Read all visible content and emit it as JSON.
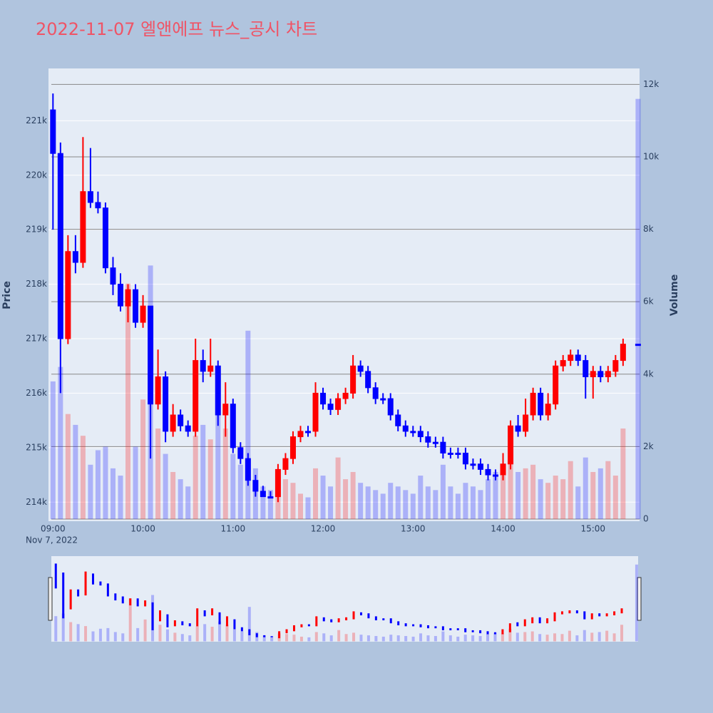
{
  "chart_data": {
    "type": "candlestick",
    "title": "2022-11-07 엘앤에프 뉴스_공시 차트",
    "ylabel": "Price",
    "y2label": "Volume",
    "x_date_label": "Nov 7, 2022",
    "increasing_color": "#ff0000",
    "decreasing_color": "#0000ff",
    "x": [
      "2022-11-07 09:00",
      "2022-11-07 09:05",
      "2022-11-07 09:10",
      "2022-11-07 09:15",
      "2022-11-07 09:20",
      "2022-11-07 09:25",
      "2022-11-07 09:30",
      "2022-11-07 09:35",
      "2022-11-07 09:40",
      "2022-11-07 09:45",
      "2022-11-07 09:50",
      "2022-11-07 09:55",
      "2022-11-07 10:00",
      "2022-11-07 10:05",
      "2022-11-07 10:10",
      "2022-11-07 10:15",
      "2022-11-07 10:20",
      "2022-11-07 10:25",
      "2022-11-07 10:30",
      "2022-11-07 10:35",
      "2022-11-07 10:40",
      "2022-11-07 10:45",
      "2022-11-07 10:50",
      "2022-11-07 10:55",
      "2022-11-07 11:00",
      "2022-11-07 11:05",
      "2022-11-07 11:10",
      "2022-11-07 11:15",
      "2022-11-07 11:20",
      "2022-11-07 11:25",
      "2022-11-07 11:30",
      "2022-11-07 11:35",
      "2022-11-07 11:40",
      "2022-11-07 11:45",
      "2022-11-07 11:50",
      "2022-11-07 11:55",
      "2022-11-07 12:00",
      "2022-11-07 12:05",
      "2022-11-07 12:10",
      "2022-11-07 12:15",
      "2022-11-07 12:20",
      "2022-11-07 12:25",
      "2022-11-07 12:30",
      "2022-11-07 12:35",
      "2022-11-07 12:40",
      "2022-11-07 12:45",
      "2022-11-07 12:50",
      "2022-11-07 12:55",
      "2022-11-07 13:00",
      "2022-11-07 13:05",
      "2022-11-07 13:10",
      "2022-11-07 13:15",
      "2022-11-07 13:20",
      "2022-11-07 13:25",
      "2022-11-07 13:30",
      "2022-11-07 13:35",
      "2022-11-07 13:40",
      "2022-11-07 13:45",
      "2022-11-07 13:50",
      "2022-11-07 13:55",
      "2022-11-07 14:00",
      "2022-11-07 14:05",
      "2022-11-07 14:10",
      "2022-11-07 14:15",
      "2022-11-07 14:20",
      "2022-11-07 14:25",
      "2022-11-07 14:30",
      "2022-11-07 14:35",
      "2022-11-07 14:40",
      "2022-11-07 14:45",
      "2022-11-07 14:50",
      "2022-11-07 14:55",
      "2022-11-07 15:00",
      "2022-11-07 15:05",
      "2022-11-07 15:10",
      "2022-11-07 15:15",
      "2022-11-07 15:20",
      "2022-11-07 15:30"
    ],
    "open": [
      221200,
      220400,
      217000,
      218600,
      218400,
      219700,
      219500,
      219400,
      218300,
      218000,
      217600,
      217900,
      217300,
      217600,
      215800,
      216300,
      215300,
      215600,
      215400,
      215300,
      216600,
      216400,
      216500,
      215600,
      215800,
      215000,
      214800,
      214400,
      214200,
      214100,
      214100,
      214600,
      214800,
      215200,
      215300,
      215300,
      216000,
      215800,
      215700,
      215900,
      216000,
      216500,
      216400,
      216100,
      215900,
      215900,
      215600,
      215400,
      215300,
      215300,
      215200,
      215100,
      215100,
      214900,
      214900,
      214900,
      214700,
      214700,
      214600,
      214500,
      214500,
      214700,
      215400,
      215300,
      215600,
      216000,
      215600,
      215800,
      216500,
      216600,
      216700,
      216600,
      216300,
      216400,
      216300,
      216400,
      216600,
      216900
    ],
    "high": [
      221500,
      220600,
      218900,
      218900,
      220700,
      220500,
      219700,
      219500,
      218500,
      218200,
      218000,
      218000,
      217800,
      217600,
      216800,
      216400,
      215800,
      215700,
      215500,
      217000,
      216800,
      217000,
      216600,
      216200,
      215900,
      215100,
      214900,
      214500,
      214300,
      214200,
      214700,
      214900,
      215300,
      215400,
      215400,
      216200,
      216100,
      215900,
      216000,
      216100,
      216700,
      216600,
      216500,
      216200,
      216000,
      216000,
      215700,
      215500,
      215400,
      215400,
      215300,
      215200,
      215200,
      215000,
      215000,
      215000,
      214800,
      214800,
      214700,
      214600,
      214900,
      215500,
      215600,
      215900,
      216100,
      216100,
      216000,
      216600,
      216700,
      216800,
      216800,
      216700,
      216500,
      216500,
      216500,
      216700,
      217000,
      216900
    ],
    "low": [
      219000,
      216000,
      216900,
      218200,
      218300,
      219400,
      219300,
      218200,
      217800,
      217500,
      217300,
      217200,
      217200,
      214800,
      215700,
      215100,
      215200,
      215300,
      215200,
      215200,
      216200,
      216300,
      215400,
      215200,
      214900,
      214700,
      214300,
      214100,
      214100,
      214100,
      214000,
      214500,
      214700,
      215100,
      215200,
      215200,
      215700,
      215600,
      215600,
      215800,
      215900,
      216300,
      216000,
      215800,
      215800,
      215500,
      215300,
      215200,
      215200,
      215100,
      215000,
      215000,
      214800,
      214800,
      214800,
      214600,
      214600,
      214500,
      214400,
      214400,
      214400,
      214600,
      215200,
      215200,
      215500,
      215500,
      215500,
      215700,
      216400,
      216500,
      216500,
      215900,
      215900,
      216200,
      216200,
      216300,
      216500,
      216900
    ],
    "close": [
      220400,
      217000,
      218600,
      218400,
      219700,
      219500,
      219400,
      218300,
      218000,
      217600,
      217900,
      217300,
      217600,
      215800,
      216300,
      215300,
      215600,
      215400,
      215300,
      216600,
      216400,
      216500,
      215600,
      215800,
      215000,
      214800,
      214400,
      214200,
      214100,
      214100,
      214600,
      214800,
      215200,
      215300,
      215300,
      216000,
      215800,
      215700,
      215900,
      216000,
      216500,
      216400,
      216100,
      215900,
      215900,
      215600,
      215400,
      215300,
      215300,
      215200,
      215100,
      215100,
      214900,
      214900,
      214900,
      214700,
      214700,
      214600,
      214500,
      214500,
      214700,
      215400,
      215300,
      215600,
      216000,
      215600,
      215800,
      216500,
      216600,
      216700,
      216600,
      216300,
      216400,
      216300,
      216400,
      216600,
      216900,
      216900
    ],
    "volume": [
      3800,
      4200,
      2900,
      2600,
      2300,
      1500,
      1900,
      2000,
      1400,
      1200,
      6500,
      2000,
      3300,
      7000,
      2500,
      1800,
      1300,
      1100,
      900,
      2300,
      2600,
      2200,
      3000,
      2500,
      1800,
      1500,
      5200,
      1400,
      900,
      800,
      1200,
      1100,
      1000,
      700,
      600,
      1400,
      1200,
      900,
      1700,
      1100,
      1300,
      1000,
      900,
      800,
      700,
      1000,
      900,
      800,
      700,
      1200,
      900,
      800,
      1500,
      900,
      700,
      1000,
      900,
      800,
      1100,
      1300,
      1200,
      1900,
      1300,
      1400,
      1500,
      1100,
      1000,
      1200,
      1100,
      1600,
      900,
      1700,
      1300,
      1400,
      1600,
      1200,
      2500,
      11600
    ],
    "xlim": [
      "2022-11-07 08:57",
      "2022-11-07 15:31"
    ],
    "xticks": [
      {
        "value": "2022-11-07 09:00",
        "label": "09:00"
      },
      {
        "value": "2022-11-07 10:00",
        "label": "10:00"
      },
      {
        "value": "2022-11-07 11:00",
        "label": "11:00"
      },
      {
        "value": "2022-11-07 12:00",
        "label": "12:00"
      },
      {
        "value": "2022-11-07 13:00",
        "label": "13:00"
      },
      {
        "value": "2022-11-07 14:00",
        "label": "14:00"
      },
      {
        "value": "2022-11-07 15:00",
        "label": "15:00"
      }
    ],
    "ylim": [
      213650,
      221960
    ],
    "yticks": [
      {
        "value": 214000,
        "label": "214k"
      },
      {
        "value": 215000,
        "label": "215k"
      },
      {
        "value": 216000,
        "label": "216k"
      },
      {
        "value": 217000,
        "label": "217k"
      },
      {
        "value": 218000,
        "label": "218k"
      },
      {
        "value": 219000,
        "label": "219k"
      },
      {
        "value": 220000,
        "label": "220k"
      },
      {
        "value": 221000,
        "label": "221k"
      }
    ],
    "y2lim": [
      -59,
      12440
    ],
    "y2ticks": [
      0,
      {
        "value": 2000,
        "label": "2k"
      },
      {
        "value": 4000,
        "label": "4k"
      },
      {
        "value": 6000,
        "label": "6k"
      },
      {
        "value": 8000,
        "label": "8k"
      },
      {
        "value": 10000,
        "label": "10k"
      },
      {
        "value": 12000,
        "label": "12k"
      }
    ],
    "grid": true,
    "rangeslider": true
  }
}
